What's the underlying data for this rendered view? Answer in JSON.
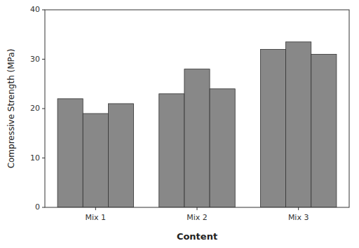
{
  "chart_data": {
    "type": "bar",
    "xlabel": "Content",
    "ylabel": "Compressive Strength (MPa)",
    "categories": [
      "Mix 1",
      "Mix 2",
      "Mix 3"
    ],
    "series": [
      {
        "values": [
          22.0,
          23.0,
          32.0
        ]
      },
      {
        "values": [
          19.0,
          28.0,
          33.5
        ]
      },
      {
        "values": [
          21.0,
          24.0,
          31.0
        ]
      }
    ],
    "color": "#888888",
    "ylim": [
      0,
      40
    ],
    "yticks": [
      0,
      10,
      20,
      30,
      40
    ],
    "grid": false
  }
}
